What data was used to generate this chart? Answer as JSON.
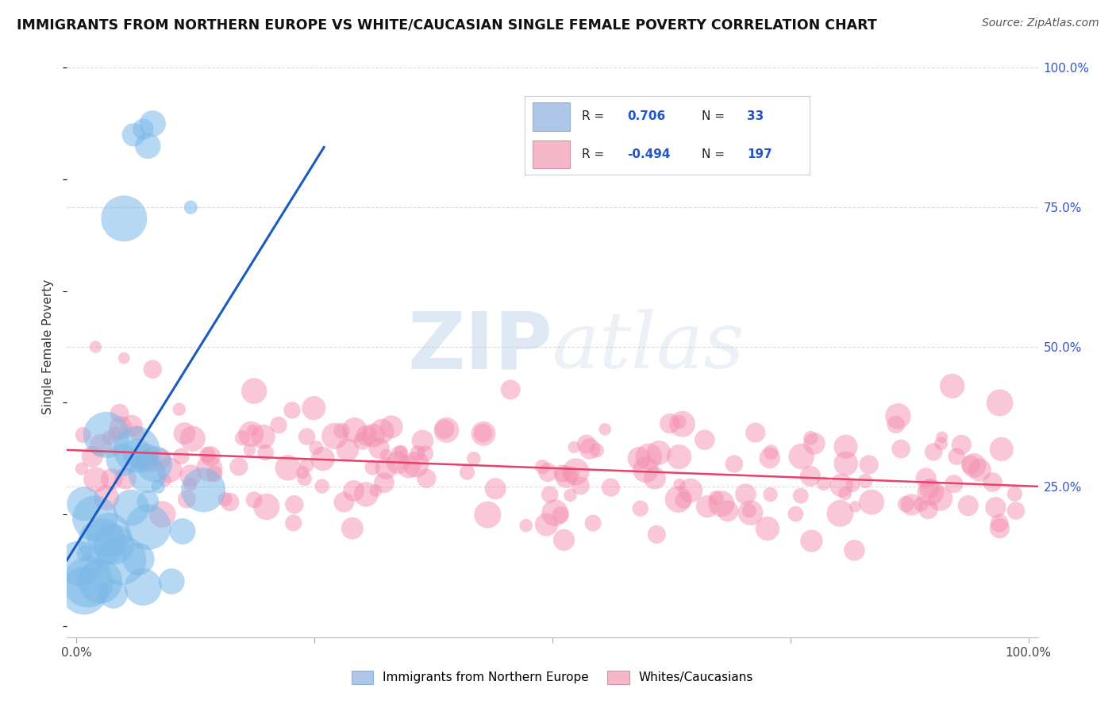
{
  "title": "IMMIGRANTS FROM NORTHERN EUROPE VS WHITE/CAUCASIAN SINGLE FEMALE POVERTY CORRELATION CHART",
  "source": "Source: ZipAtlas.com",
  "ylabel": "Single Female Poverty",
  "r_blue": 0.706,
  "n_blue": 33,
  "r_pink": -0.494,
  "n_pink": 197,
  "blue_scatter_color": "#7ab8e8",
  "pink_scatter_color": "#f490b0",
  "blue_line_color": "#1a5bbf",
  "pink_line_color": "#e8406a",
  "blue_legend_color": "#aec6e8",
  "pink_legend_color": "#f4b8c8",
  "watermark_color": "#c8dff0",
  "background_color": "#ffffff",
  "grid_color": "#cccccc",
  "right_axis_color": "#3355cc",
  "title_color": "#111111",
  "source_color": "#555555"
}
